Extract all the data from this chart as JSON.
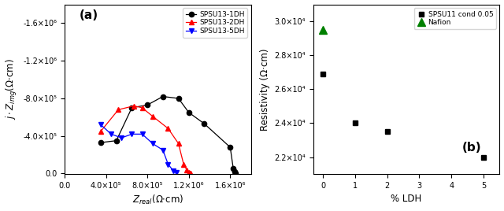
{
  "panel_a": {
    "title": "(a)",
    "xlabel": "Z_real(Ω·cm)",
    "ylabel": "j·Z_img(Ω·cm)",
    "series": [
      {
        "label": "SPSU13-1DH",
        "color": "black",
        "marker": "o",
        "x": [
          350000.0,
          500000.0,
          650000.0,
          800000.0,
          950000.0,
          1100000.0,
          1200000.0,
          1350000.0,
          1600000.0,
          1630000.0,
          1640000.0,
          1650000.0
        ],
        "y": [
          -330000.0,
          -350000.0,
          -700000.0,
          -730000.0,
          -820000.0,
          -800000.0,
          -650000.0,
          -530000.0,
          -280000.0,
          -50000.0,
          -20000.0,
          -5000.0
        ]
      },
      {
        "label": "SPSU13-2DH",
        "color": "red",
        "marker": "^",
        "x": [
          350000.0,
          520000.0,
          670000.0,
          750000.0,
          850000.0,
          1000000.0,
          1100000.0,
          1150000.0,
          1180000.0,
          1200000.0,
          1220000.0
        ],
        "y": [
          -450000.0,
          -680000.0,
          -720000.0,
          -700000.0,
          -610000.0,
          -480000.0,
          -320000.0,
          -100000.0,
          -40000.0,
          -10000.0,
          -5000.0
        ]
      },
      {
        "label": "SPSU13-5DH",
        "color": "blue",
        "marker": "v",
        "x": [
          350000.0,
          450000.0,
          550000.0,
          650000.0,
          750000.0,
          850000.0,
          950000.0,
          1000000.0,
          1050000.0,
          1080000.0
        ],
        "y": [
          -520000.0,
          -420000.0,
          -380000.0,
          -420000.0,
          -420000.0,
          -320000.0,
          -250000.0,
          -100000.0,
          -30000.0,
          -10000.0
        ]
      }
    ],
    "xlim": [
      0.0,
      1800000.0
    ],
    "ylim": [
      -1800000.0,
      5000.0
    ],
    "xticks": [
      0.0,
      400000.0,
      800000.0,
      1200000.0,
      1600000.0
    ],
    "yticks": [
      0.0,
      -400000.0,
      -800000.0,
      -1200000.0,
      -1600000.0
    ],
    "ytick_labels": [
      "0.0",
      "-4.0×10⁵",
      "-8.0×10⁵",
      "-1.2×10⁶",
      "-1.6×10⁶"
    ],
    "xtick_labels": [
      "0.0",
      "4.0×10⁵",
      "8.0×10⁵",
      "1.2×10⁶",
      "1.6×10⁶"
    ]
  },
  "panel_b": {
    "title": "(b)",
    "xlabel": "% LDH",
    "ylabel": "Resistivity (Ω·cm)",
    "series_black": {
      "label": "SPSU11 cond 0.05",
      "color": "black",
      "marker": "s",
      "x": [
        0,
        1,
        2,
        5
      ],
      "y": [
        26900.0,
        24000.0,
        23500.0,
        22000.0
      ]
    },
    "series_green": {
      "label": "Nafion",
      "color": "green",
      "marker": "^",
      "x": [
        0
      ],
      "y": [
        29500.0
      ]
    },
    "xlim": [
      -0.3,
      5.5
    ],
    "ylim": [
      21000.0,
      31000.0
    ],
    "yticks": [
      22000.0,
      24000.0,
      26000.0,
      28000.0,
      30000.0
    ],
    "ytick_labels": [
      "2.2×10⁴",
      "2.4×10⁴",
      "2.6×10⁴",
      "2.8×10⁴",
      "3.0×10⁴"
    ],
    "xticks": [
      0,
      1,
      2,
      3,
      4,
      5
    ]
  }
}
